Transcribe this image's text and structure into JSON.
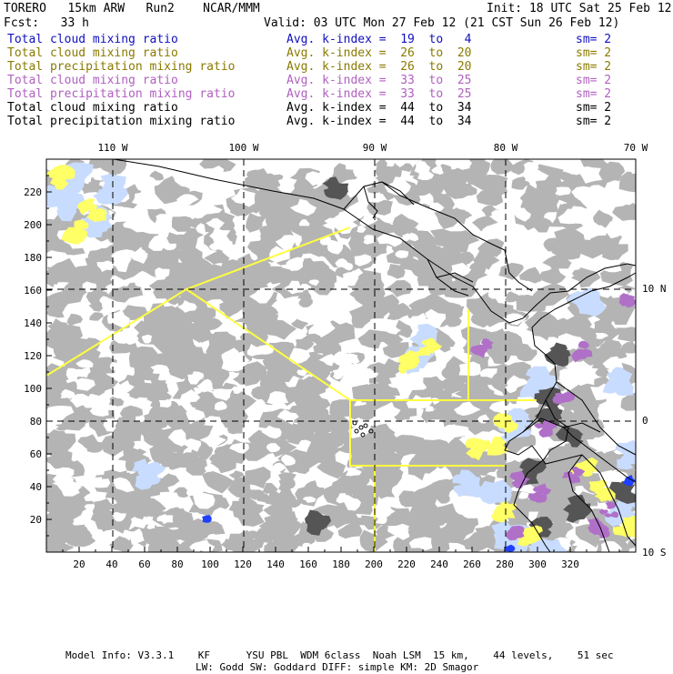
{
  "header": {
    "model_line": "TORERO   15km ARW   Run2    NCAR/MMM",
    "init": "Init: 18 UTC Sat 25 Feb 12",
    "fcst": "Fcst:   33 h",
    "valid": "Valid: 03 UTC Mon 27 Feb 12 (21 CST Sun 26 Feb 12)"
  },
  "legend": [
    {
      "field": "Total cloud mixing ratio",
      "kindex": "Avg. k-index =  19  to   4",
      "sm": "sm= 2",
      "color": "#1010c0"
    },
    {
      "field": "Total cloud mixing ratio",
      "kindex": "Avg. k-index =  26  to  20",
      "sm": "sm= 2",
      "color": "#8a7a00"
    },
    {
      "field": "Total precipitation mixing ratio",
      "kindex": "Avg. k-index =  26  to  20",
      "sm": "sm= 2",
      "color": "#8a7a00"
    },
    {
      "field": "Total cloud mixing ratio",
      "kindex": "Avg. k-index =  33  to  25",
      "sm": "sm= 2",
      "color": "#b060c0"
    },
    {
      "field": "Total precipitation mixing ratio",
      "kindex": "Avg. k-index =  33  to  25",
      "sm": "sm= 2",
      "color": "#b060c0"
    },
    {
      "field": "Total cloud mixing ratio",
      "kindex": "Avg. k-index =  44  to  34",
      "sm": "sm= 2",
      "color": "#000000"
    },
    {
      "field": "Total precipitation mixing ratio",
      "kindex": "Avg. k-index =  44  to  34",
      "sm": "sm= 2",
      "color": "#000000"
    }
  ],
  "axes": {
    "lon_labels": [
      "110 W",
      "100 W",
      "90 W",
      "80 W",
      "70 W"
    ],
    "lat_labels": [
      "10 N",
      "0",
      "10 S"
    ],
    "x_ticks": [
      "20",
      "40",
      "60",
      "80",
      "100",
      "120",
      "140",
      "160",
      "180",
      "200",
      "220",
      "240",
      "260",
      "280",
      "300",
      "320"
    ],
    "y_ticks": [
      "220",
      "200",
      "180",
      "160",
      "140",
      "120",
      "100",
      "80",
      "60",
      "40",
      "20"
    ]
  },
  "footer": {
    "line1": "Model Info: V3.3.1    KF      YSU PBL  WDM 6class  Noah LSM  15 km,    44 levels,    51 sec",
    "line2": "LW: Godd SW: Goddard DIFF: simple KM: 2D Smagor"
  },
  "colors": {
    "gray_cloud": "#b4b4b4",
    "dark_cloud": "#555555",
    "light_blue": "#c8dcff",
    "blue": "#2040ff",
    "yellow": "#ffff66",
    "purple": "#b070c8",
    "boundary": "#ffff40"
  }
}
